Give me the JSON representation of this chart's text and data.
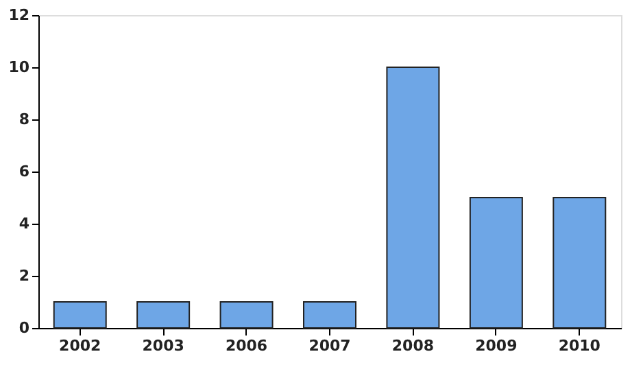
{
  "chart_data": {
    "type": "bar",
    "categories": [
      "2002",
      "2003",
      "2006",
      "2007",
      "2008",
      "2009",
      "2010"
    ],
    "values": [
      1,
      1,
      1,
      1,
      10,
      5,
      5
    ],
    "color": "#6ea6e6",
    "ylim": [
      0,
      12
    ],
    "yticks": [
      0,
      2,
      4,
      6,
      8,
      10,
      12
    ],
    "grid": false
  }
}
